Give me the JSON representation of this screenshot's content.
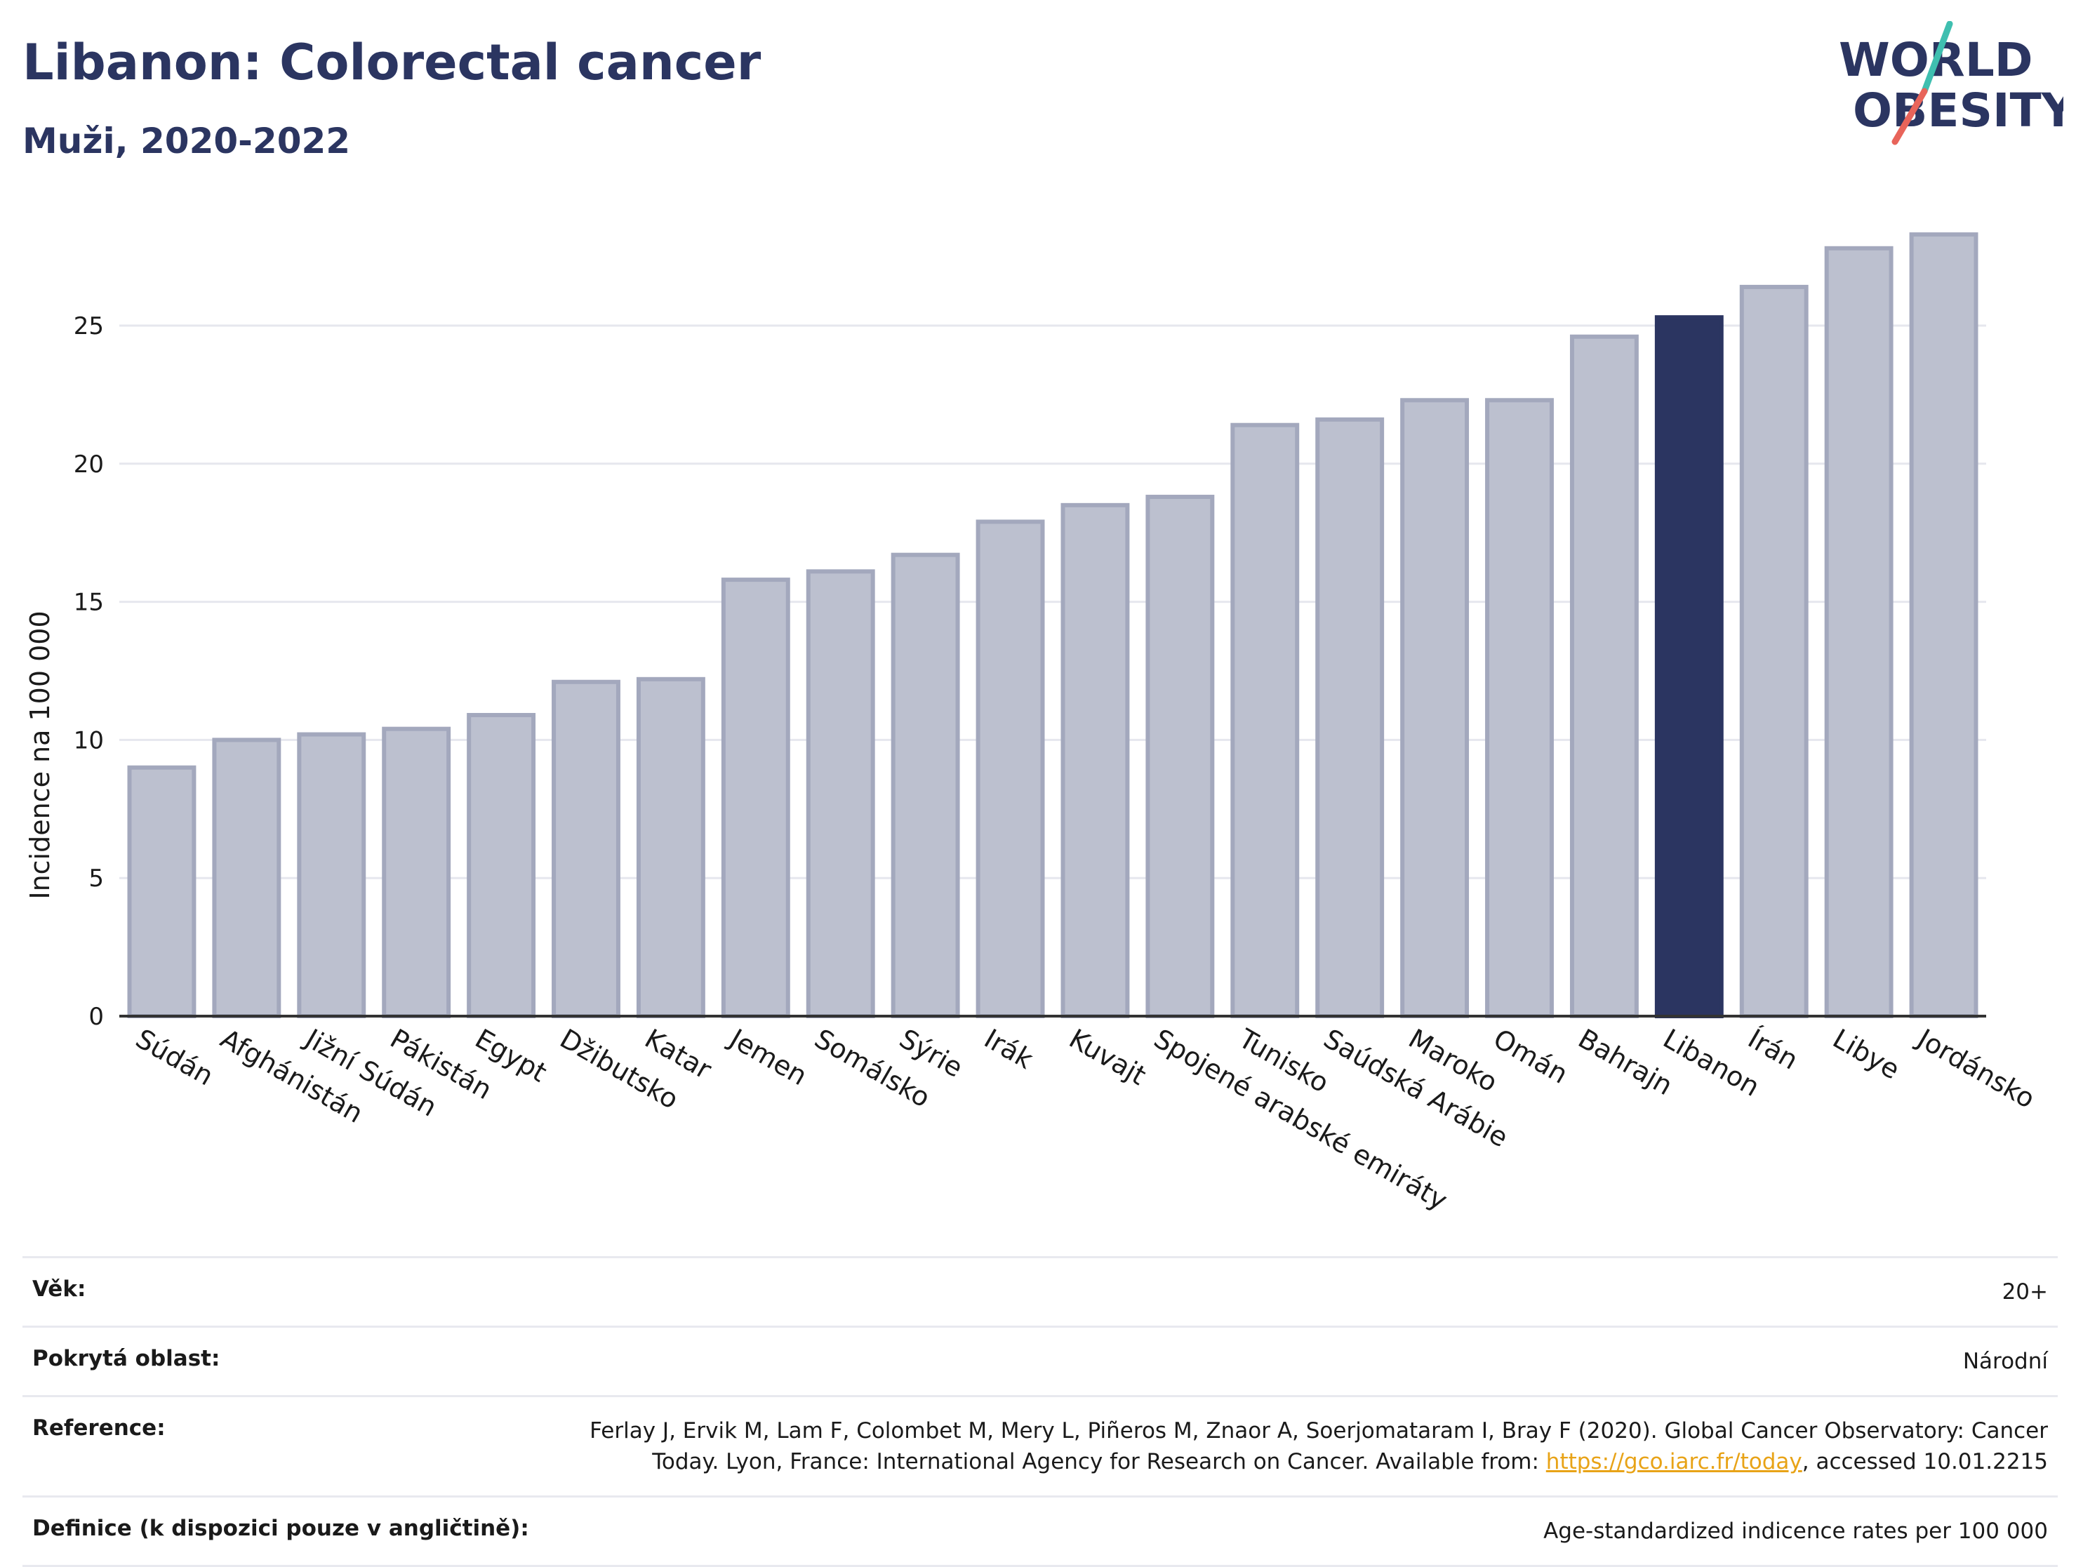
{
  "title": "Libanon: Colorectal cancer",
  "subtitle": "Muži, 2020-2022",
  "logo": {
    "line1": "WORLD",
    "line2": "OBESITY",
    "accent_teal": "#3fbfb0",
    "accent_red": "#e8645a"
  },
  "colors": {
    "highlight": "#2b3561",
    "bar_fill": "#bcc0cf",
    "bar_stroke": "#a3a8bd",
    "grid": "#e6e7ee"
  },
  "chart_data": {
    "type": "bar",
    "title": "Libanon: Colorectal cancer",
    "subtitle": "Muži, 2020-2022",
    "ylabel": "Incidence na 100 000",
    "xlabel": "",
    "ylim": [
      0,
      30
    ],
    "yticks": [
      0,
      5,
      10,
      15,
      20,
      25
    ],
    "grid": true,
    "highlight": "Libanon",
    "categories": [
      "Súdán",
      "Afghánistán",
      "Jižní Súdán",
      "Pákistán",
      "Egypt",
      "Džibutsko",
      "Katar",
      "Jemen",
      "Somálsko",
      "Sýrie",
      "Irák",
      "Kuvajt",
      "Spojené arabské emiráty",
      "Tunisko",
      "Saúdská Arábie",
      "Maroko",
      "Omán",
      "Bahrajn",
      "Libanon",
      "Írán",
      "Libye",
      "Jordánsko"
    ],
    "values": [
      9.0,
      10.0,
      10.2,
      10.4,
      10.9,
      12.1,
      12.2,
      15.8,
      16.1,
      16.7,
      17.9,
      18.5,
      18.8,
      21.4,
      21.6,
      22.3,
      22.3,
      24.6,
      25.3,
      26.4,
      27.8,
      28.3
    ]
  },
  "info": {
    "age_label": "Věk:",
    "age_value": "20+",
    "coverage_label": "Pokrytá oblast:",
    "coverage_value": "Národní",
    "reference_label": "Reference:",
    "reference_text_1": "Ferlay J, Ervik M, Lam F, Colombet M, Mery L, Piñeros M, Znaor A, Soerjomataram I, Bray F (2020). Global Cancer Observatory: Cancer",
    "reference_text_2": "Today. Lyon, France: International Agency for Research on Cancer. Available from: ",
    "reference_link": "https://gco.iarc.fr/today",
    "reference_text_3": ", accessed 10.01.2215",
    "definition_label": "Definice (k dispozici pouze v angličtině):",
    "definition_value": "Age-standardized indicence rates per 100 000"
  }
}
